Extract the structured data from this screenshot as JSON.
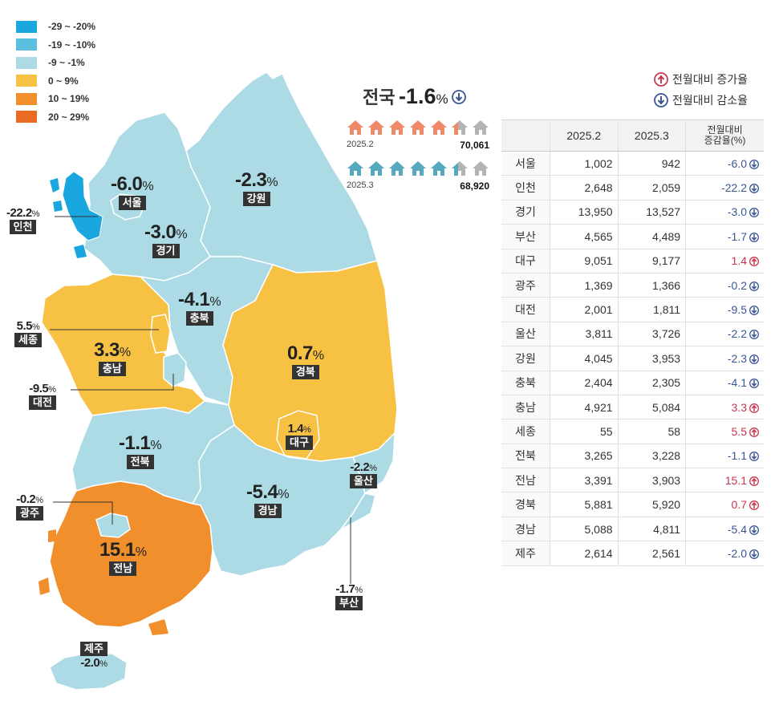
{
  "colors": {
    "decrease_20_29": "#1aa6df",
    "decrease_10_19": "#5bc0e0",
    "decrease_1_9": "#acdbe6",
    "increase_0_9": "#f7c144",
    "increase_10_19": "#f08f2c",
    "increase_20_29": "#ea6a24",
    "up_arrow": "#c8384d",
    "down_arrow": "#3a5794",
    "house_2025_2": "#ee8a6a",
    "house_2025_3": "#57a9bf",
    "house_grey": "#b4b4b4"
  },
  "legend": [
    {
      "label": "-29 ~ -20%",
      "color": "#1aa6df"
    },
    {
      "label": "-19 ~ -10%",
      "color": "#5bc0e0"
    },
    {
      "label": "-9 ~ -1%",
      "color": "#acdbe6"
    },
    {
      "label": "0 ~ 9%",
      "color": "#f7c144"
    },
    {
      "label": "10 ~ 19%",
      "color": "#f08f2c"
    },
    {
      "label": "20 ~ 29%",
      "color": "#ea6a24"
    }
  ],
  "national": {
    "label": "전국",
    "value": "-1.6",
    "unit": "%",
    "icon": "down-arrow-icon",
    "feb": {
      "label": "2025.2",
      "count": "70,061"
    },
    "mar": {
      "label": "2025.3",
      "count": "68,920"
    }
  },
  "arrow_legend": {
    "up": "전월대비 증가율",
    "down": "전월대비 감소율"
  },
  "table": {
    "headers": [
      "",
      "2025.2",
      "2025.3",
      "전월대비",
      "증감율(%)"
    ],
    "rows": [
      {
        "name": "서울",
        "feb": "1,002",
        "mar": "942",
        "rate": "-6.0",
        "dir": "down"
      },
      {
        "name": "인천",
        "feb": "2,648",
        "mar": "2,059",
        "rate": "-22.2",
        "dir": "down"
      },
      {
        "name": "경기",
        "feb": "13,950",
        "mar": "13,527",
        "rate": "-3.0",
        "dir": "down"
      },
      {
        "name": "부산",
        "feb": "4,565",
        "mar": "4,489",
        "rate": "-1.7",
        "dir": "down"
      },
      {
        "name": "대구",
        "feb": "9,051",
        "mar": "9,177",
        "rate": "1.4",
        "dir": "up"
      },
      {
        "name": "광주",
        "feb": "1,369",
        "mar": "1,366",
        "rate": "-0.2",
        "dir": "down"
      },
      {
        "name": "대전",
        "feb": "2,001",
        "mar": "1,811",
        "rate": "-9.5",
        "dir": "down"
      },
      {
        "name": "울산",
        "feb": "3,811",
        "mar": "3,726",
        "rate": "-2.2",
        "dir": "down"
      },
      {
        "name": "강원",
        "feb": "4,045",
        "mar": "3,953",
        "rate": "-2.3",
        "dir": "down"
      },
      {
        "name": "충북",
        "feb": "2,404",
        "mar": "2,305",
        "rate": "-4.1",
        "dir": "down"
      },
      {
        "name": "충남",
        "feb": "4,921",
        "mar": "5,084",
        "rate": "3.3",
        "dir": "up"
      },
      {
        "name": "세종",
        "feb": "55",
        "mar": "58",
        "rate": "5.5",
        "dir": "up"
      },
      {
        "name": "전북",
        "feb": "3,265",
        "mar": "3,228",
        "rate": "-1.1",
        "dir": "down"
      },
      {
        "name": "전남",
        "feb": "3,391",
        "mar": "3,903",
        "rate": "15.1",
        "dir": "up"
      },
      {
        "name": "경북",
        "feb": "5,881",
        "mar": "5,920",
        "rate": "0.7",
        "dir": "up"
      },
      {
        "name": "경남",
        "feb": "5,088",
        "mar": "4,811",
        "rate": "-5.4",
        "dir": "down"
      },
      {
        "name": "제주",
        "feb": "2,614",
        "mar": "2,561",
        "rate": "-2.0",
        "dir": "down"
      }
    ]
  },
  "map_labels": {
    "seoul": {
      "value": "-6.0",
      "unit": "%",
      "name": "서울"
    },
    "incheon": {
      "value": "-22.2",
      "unit": "%",
      "name": "인천"
    },
    "gyeonggi": {
      "value": "-3.0",
      "unit": "%",
      "name": "경기"
    },
    "gangwon": {
      "value": "-2.3",
      "unit": "%",
      "name": "강원"
    },
    "chungbuk": {
      "value": "-4.1",
      "unit": "%",
      "name": "충북"
    },
    "sejong": {
      "value": "5.5",
      "unit": "%",
      "name": "세종"
    },
    "chungnam": {
      "value": "3.3",
      "unit": "%",
      "name": "충남"
    },
    "daejeon": {
      "value": "-9.5",
      "unit": "%",
      "name": "대전"
    },
    "gyeongbuk": {
      "value": "0.7",
      "unit": "%",
      "name": "경북"
    },
    "daegu": {
      "value": "1.4",
      "unit": "%",
      "name": "대구"
    },
    "jeonbuk": {
      "value": "-1.1",
      "unit": "%",
      "name": "전북"
    },
    "ulsan": {
      "value": "-2.2",
      "unit": "%",
      "name": "울산"
    },
    "gwangju": {
      "value": "-0.2",
      "unit": "%",
      "name": "광주"
    },
    "gyeongnam": {
      "value": "-5.4",
      "unit": "%",
      "name": "경남"
    },
    "jeonnam": {
      "value": "15.1",
      "unit": "%",
      "name": "전남"
    },
    "busan": {
      "value": "-1.7",
      "unit": "%",
      "name": "부산"
    },
    "jeju": {
      "value": "-2.0",
      "unit": "%",
      "name": "제주"
    }
  }
}
